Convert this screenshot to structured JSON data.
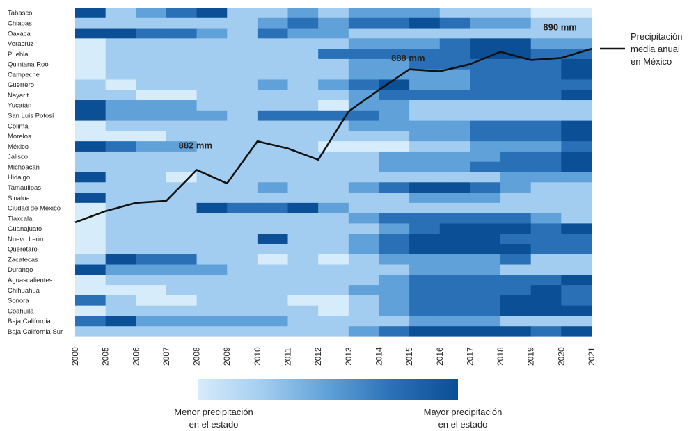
{
  "chart_data": {
    "type": "heatmap",
    "rows": [
      "Tabasco",
      "Chiapas",
      "Oaxaca",
      "Veracruz",
      "Puebla",
      "Quintana Roo",
      "Campeche",
      "Guerrero",
      "Nayarit",
      "Yucatán",
      "San Luis Potosí",
      "Colima",
      "Morelos",
      "México",
      "Jalisco",
      "Michoacán",
      "Hidalgo",
      "Tamaulipas",
      "Sinaloa",
      "Ciudad de México",
      "Tlaxcala",
      "Guanajuato",
      "Nuevo León",
      "Querétaro",
      "Zacatecas",
      "Durango",
      "Aguascalientes",
      "Chihuahua",
      "Sonora",
      "Coahuila",
      "Baja California",
      "Baja California Sur"
    ],
    "x_ticks": [
      "2000",
      "2005",
      "2006",
      "2007",
      "2008",
      "2009",
      "2010",
      "2011",
      "2012",
      "2013",
      "2014",
      "2015",
      "2016",
      "2017",
      "2018",
      "2019",
      "2020",
      "2021"
    ],
    "columns": [
      "2005",
      "2006",
      "2007",
      "2008",
      "2009",
      "2010",
      "2011",
      "2012",
      "2013",
      "2014",
      "2015",
      "2016",
      "2017",
      "2018",
      "2019",
      "2020",
      "2021"
    ],
    "intensity_scale": "0 = menor, 4 = mayor",
    "palette": [
      "#d7ecfb",
      "#a3cdf0",
      "#5fa1d8",
      "#2a70b7",
      "#0b4f96"
    ],
    "values": [
      [
        4,
        1,
        2,
        3,
        4,
        1,
        1,
        2,
        1,
        2,
        2,
        2,
        1,
        1,
        1,
        0,
        0
      ],
      [
        1,
        1,
        1,
        1,
        1,
        1,
        2,
        3,
        2,
        3,
        3,
        4,
        3,
        2,
        2,
        1,
        1
      ],
      [
        4,
        4,
        3,
        3,
        2,
        1,
        3,
        2,
        2,
        1,
        1,
        1,
        1,
        1,
        1,
        1,
        1
      ],
      [
        0,
        1,
        1,
        1,
        1,
        1,
        1,
        1,
        1,
        2,
        2,
        2,
        3,
        4,
        4,
        2,
        2
      ],
      [
        0,
        1,
        1,
        1,
        1,
        1,
        1,
        1,
        3,
        3,
        3,
        3,
        3,
        4,
        4,
        3,
        3
      ],
      [
        0,
        1,
        1,
        1,
        1,
        1,
        1,
        1,
        1,
        2,
        2,
        3,
        3,
        3,
        3,
        3,
        4
      ],
      [
        0,
        1,
        1,
        1,
        1,
        1,
        1,
        1,
        1,
        2,
        2,
        2,
        2,
        3,
        3,
        3,
        4
      ],
      [
        1,
        0,
        1,
        1,
        1,
        1,
        2,
        1,
        2,
        3,
        4,
        2,
        2,
        3,
        3,
        3,
        3
      ],
      [
        1,
        1,
        0,
        0,
        1,
        1,
        1,
        1,
        1,
        2,
        3,
        3,
        3,
        3,
        3,
        3,
        4
      ],
      [
        4,
        2,
        2,
        2,
        1,
        1,
        1,
        1,
        0,
        2,
        2,
        1,
        1,
        1,
        1,
        1,
        1
      ],
      [
        4,
        2,
        2,
        2,
        2,
        1,
        3,
        3,
        3,
        3,
        2,
        1,
        1,
        1,
        1,
        1,
        1
      ],
      [
        0,
        1,
        1,
        1,
        1,
        1,
        1,
        1,
        1,
        2,
        2,
        2,
        2,
        3,
        3,
        3,
        4
      ],
      [
        0,
        0,
        0,
        1,
        1,
        1,
        1,
        1,
        1,
        1,
        1,
        2,
        2,
        3,
        3,
        3,
        4
      ],
      [
        4,
        3,
        2,
        2,
        1,
        1,
        1,
        1,
        0,
        0,
        0,
        1,
        1,
        2,
        2,
        2,
        3
      ],
      [
        1,
        1,
        1,
        1,
        1,
        1,
        1,
        1,
        1,
        1,
        2,
        2,
        2,
        2,
        3,
        3,
        4
      ],
      [
        1,
        1,
        1,
        1,
        1,
        1,
        1,
        1,
        1,
        1,
        2,
        2,
        2,
        3,
        3,
        3,
        4
      ],
      [
        4,
        1,
        1,
        0,
        1,
        1,
        1,
        1,
        1,
        1,
        1,
        1,
        1,
        1,
        2,
        2,
        2
      ],
      [
        1,
        1,
        1,
        1,
        1,
        1,
        2,
        1,
        1,
        2,
        3,
        4,
        4,
        3,
        2,
        1,
        1
      ],
      [
        4,
        1,
        1,
        1,
        1,
        1,
        1,
        1,
        1,
        1,
        1,
        2,
        2,
        2,
        1,
        1,
        1
      ],
      [
        0,
        1,
        1,
        1,
        4,
        3,
        3,
        4,
        2,
        1,
        1,
        1,
        1,
        1,
        1,
        1,
        1
      ],
      [
        0,
        1,
        1,
        1,
        1,
        1,
        1,
        1,
        1,
        2,
        3,
        3,
        3,
        3,
        3,
        2,
        1
      ],
      [
        0,
        1,
        1,
        1,
        1,
        1,
        1,
        1,
        1,
        1,
        2,
        3,
        4,
        4,
        4,
        3,
        4
      ],
      [
        0,
        1,
        1,
        1,
        1,
        1,
        4,
        1,
        1,
        2,
        3,
        4,
        4,
        4,
        3,
        3,
        3
      ],
      [
        0,
        1,
        1,
        1,
        1,
        1,
        1,
        1,
        1,
        2,
        3,
        4,
        4,
        4,
        4,
        3,
        3
      ],
      [
        1,
        4,
        3,
        3,
        1,
        1,
        0,
        1,
        0,
        1,
        2,
        2,
        2,
        2,
        3,
        1,
        1
      ],
      [
        4,
        2,
        2,
        2,
        2,
        1,
        1,
        1,
        1,
        1,
        1,
        2,
        2,
        2,
        1,
        1,
        1
      ],
      [
        0,
        1,
        1,
        1,
        1,
        1,
        1,
        1,
        1,
        1,
        2,
        3,
        3,
        3,
        3,
        3,
        4
      ],
      [
        0,
        0,
        0,
        1,
        1,
        1,
        1,
        1,
        1,
        2,
        2,
        3,
        3,
        3,
        3,
        4,
        3
      ],
      [
        3,
        1,
        0,
        0,
        1,
        1,
        1,
        0,
        0,
        1,
        2,
        3,
        3,
        3,
        4,
        4,
        3
      ],
      [
        0,
        1,
        1,
        1,
        1,
        1,
        1,
        1,
        0,
        1,
        2,
        3,
        3,
        3,
        4,
        4,
        4
      ],
      [
        3,
        4,
        2,
        2,
        2,
        2,
        2,
        1,
        1,
        1,
        1,
        2,
        2,
        2,
        1,
        1,
        1
      ],
      [
        1,
        1,
        1,
        1,
        1,
        1,
        1,
        1,
        1,
        2,
        3,
        4,
        4,
        4,
        4,
        3,
        4
      ]
    ],
    "line": {
      "name": "Precipitación media anual en México",
      "color": "#111111",
      "points_on_grid": [
        {
          "year": "2000",
          "row": 20.9
        },
        {
          "year": "2005",
          "row": 19.8
        },
        {
          "year": "2006",
          "row": 19.0
        },
        {
          "year": "2007",
          "row": 18.8
        },
        {
          "year": "2008",
          "row": 15.8
        },
        {
          "year": "2009",
          "row": 17.1
        },
        {
          "year": "2010",
          "row": 13.0
        },
        {
          "year": "2011",
          "row": 13.7
        },
        {
          "year": "2012",
          "row": 14.8
        },
        {
          "year": "2013",
          "row": 10.1
        },
        {
          "year": "2014",
          "row": 8.0
        },
        {
          "year": "2015",
          "row": 6.0
        },
        {
          "year": "2016",
          "row": 6.2
        },
        {
          "year": "2017",
          "row": 5.5
        },
        {
          "year": "2018",
          "row": 4.3
        },
        {
          "year": "2019",
          "row": 5.1
        },
        {
          "year": "2020",
          "row": 4.9
        },
        {
          "year": "2021",
          "row": 4.0
        }
      ]
    },
    "annotations": [
      {
        "text": "882 mm",
        "year": "2008",
        "row": 13.7
      },
      {
        "text": "888 mm",
        "year": "2015",
        "row": 5.2
      },
      {
        "text": "890 mm",
        "year": "2020",
        "row": 2.2
      }
    ],
    "legend": {
      "line_label": [
        "Precipitación",
        "media anual",
        "en México"
      ],
      "colorbar_min": [
        "Menor precipitación",
        "en el estado"
      ],
      "colorbar_max": [
        "Mayor precipitación",
        "en el estado"
      ]
    }
  }
}
